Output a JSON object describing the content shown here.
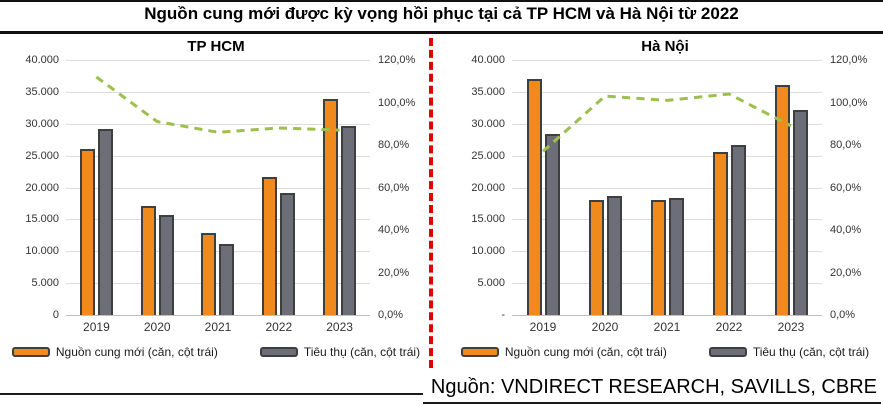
{
  "title": "Nguồn cung mới được kỳ vọng hồi phục tại cả TP HCM và Hà Nội từ 2022",
  "source": "Nguồn: VNDIRECT RESEARCH, SAVILLS, CBRE",
  "colors": {
    "new_supply": "#F08A1D",
    "consumption": "#6E6E78",
    "bar_border": "#3F3F3F",
    "ratio_line": "#9CBF4E",
    "divider": "#E00000",
    "grid": "#DCDCDC"
  },
  "chart_data": [
    {
      "type": "bar",
      "title": "TP HCM",
      "categories": [
        "2019",
        "2020",
        "2021",
        "2022",
        "2023"
      ],
      "series": [
        {
          "name": "Nguồn cung mới (căn, cột trái)",
          "values": [
            26000,
            17100,
            12900,
            21700,
            33900
          ]
        },
        {
          "name": "Tiêu thụ (căn, cột trái)",
          "values": [
            29200,
            15700,
            11100,
            19200,
            29600
          ]
        }
      ],
      "line": {
        "axis": "right",
        "values_pct": [
          112,
          91,
          86,
          88,
          87
        ]
      },
      "left_axis": {
        "ticks": [
          "40.000",
          "35.000",
          "30.000",
          "25.000",
          "20.000",
          "15.000",
          "10.000",
          "5.000",
          "0"
        ],
        "max": 40000
      },
      "right_axis": {
        "ticks": [
          "120,0%",
          "100,0%",
          "80,0%",
          "60,0%",
          "40,0%",
          "20,0%",
          "0,0%"
        ],
        "max": 120
      },
      "legend": [
        "Nguồn cung mới (căn, cột trái)",
        "Tiêu thụ (căn, cột trái)"
      ]
    },
    {
      "type": "bar",
      "title": "Hà Nội",
      "categories": [
        "2019",
        "2020",
        "2021",
        "2022",
        "2023"
      ],
      "series": [
        {
          "name": "Nguồn cung mới (căn, cột trái)",
          "values": [
            37000,
            18000,
            18000,
            25600,
            36100
          ]
        },
        {
          "name": "Tiêu thụ (căn, cột trái)",
          "values": [
            28400,
            18600,
            18300,
            26600,
            32100
          ]
        }
      ],
      "line": {
        "axis": "right",
        "values_pct": [
          77,
          103,
          101,
          104,
          89
        ]
      },
      "left_axis": {
        "ticks": [
          "40.000",
          "35.000",
          "30.000",
          "25.000",
          "20.000",
          "15.000",
          "10.000",
          "5.000",
          "-"
        ],
        "max": 40000
      },
      "right_axis": {
        "ticks": [
          "120,0%",
          "100,0%",
          "80,0%",
          "60,0%",
          "40,0%",
          "20,0%",
          "0,0%"
        ],
        "max": 120
      },
      "legend": [
        "Nguồn cung mới (căn, cột trái)",
        "Tiêu thụ (căn, cột trái)"
      ]
    }
  ]
}
